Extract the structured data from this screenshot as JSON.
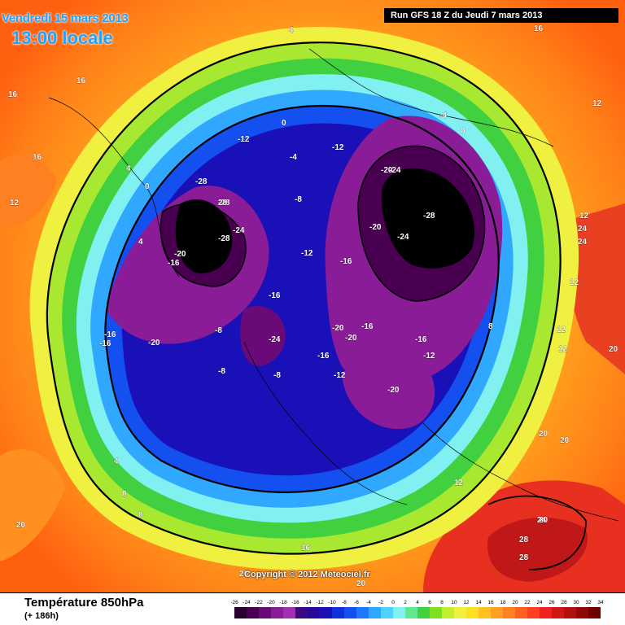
{
  "header": {
    "date": "Vendredi 15 mars 2013",
    "time": "13:00 locale",
    "run": "Run GFS 18 Z du Jeudi 7 mars 2013"
  },
  "map": {
    "copyright": "Copyright © 2012 Meteociel.fr",
    "isotherm_labels": [
      "-28",
      "-28",
      "-28",
      "-28",
      "-24",
      "-24",
      "-24",
      "-24",
      "-20",
      "-20",
      "-20",
      "-20",
      "-20",
      "-20",
      "-20",
      "-16",
      "-16",
      "-16",
      "-16",
      "-16",
      "-16",
      "-16",
      "-16",
      "-12",
      "-12",
      "-12",
      "-12",
      "-12",
      "-8",
      "-8",
      "-8",
      "-8",
      "-4",
      "-4",
      "0",
      "0",
      "0",
      "4",
      "4",
      "4",
      "4",
      "8",
      "8",
      "8",
      "12",
      "12",
      "12",
      "12",
      "12",
      "12",
      "12",
      "16",
      "16",
      "16",
      "16",
      "16",
      "20",
      "20",
      "20",
      "20",
      "20",
      "20",
      "20",
      "24",
      "24",
      "24",
      "28",
      "28",
      "28"
    ]
  },
  "legend": {
    "title": "Température 850hPa",
    "subtitle": "(+ 186h)",
    "ticks": [
      "-26",
      "-24",
      "-22",
      "-20",
      "-18",
      "-16",
      "-14",
      "-12",
      "-10",
      "-8",
      "-6",
      "-4",
      "-2",
      "0",
      "2",
      "4",
      "6",
      "8",
      "10",
      "12",
      "14",
      "16",
      "18",
      "20",
      "22",
      "24",
      "26",
      "28",
      "30",
      "32",
      "34"
    ],
    "colors": [
      "#2a0030",
      "#4a0050",
      "#6a0a78",
      "#8a1c98",
      "#a030b0",
      "#3a0a80",
      "#280a9a",
      "#1a10b8",
      "#1030d8",
      "#1450f0",
      "#1c78ff",
      "#30a8ff",
      "#50d0ff",
      "#80f0f0",
      "#60e890",
      "#40d040",
      "#80e020",
      "#c0f030",
      "#f0f040",
      "#ffe020",
      "#ffc020",
      "#ffa020",
      "#ff8020",
      "#ff6020",
      "#ff4020",
      "#f02020",
      "#d01818",
      "#b01010",
      "#900808",
      "#700000"
    ]
  }
}
